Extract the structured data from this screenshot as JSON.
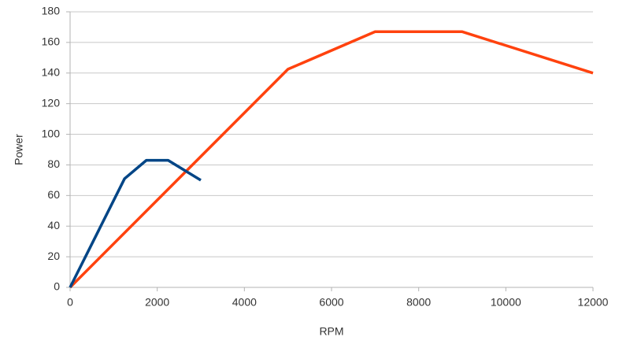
{
  "chart_data": {
    "type": "line",
    "x_label": "RPM",
    "y_label": "Power",
    "series": [
      {
        "color": "#004586",
        "x": [
          0,
          1250,
          1750,
          2250,
          3000
        ],
        "values": [
          0,
          71,
          83,
          83,
          70
        ]
      },
      {
        "color": "#ff420e",
        "x": [
          0,
          5000,
          7000,
          9000,
          12000
        ],
        "values": [
          0,
          142.5,
          167,
          167,
          140
        ]
      }
    ],
    "xlim": [
      0,
      12000
    ],
    "xticks": [
      0,
      2000,
      4000,
      6000,
      8000,
      10000,
      12000
    ],
    "ylim": [
      0,
      180
    ],
    "yticks": [
      0,
      20,
      40,
      60,
      80,
      100,
      120,
      140,
      160,
      180
    ],
    "grid": true
  }
}
